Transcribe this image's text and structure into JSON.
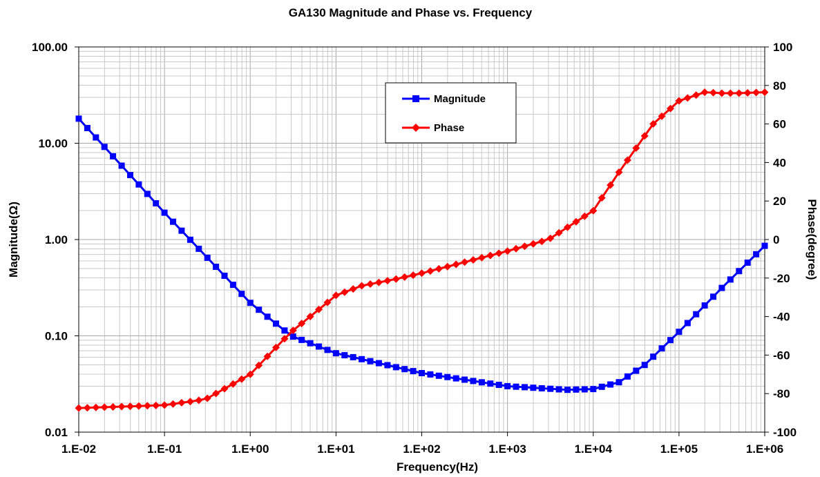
{
  "chart_data": {
    "type": "line",
    "title": "GA130 Magnitude and Phase vs. Frequency",
    "xlabel": "Frequency(Hz)",
    "ylabel_left": "Magnitude(Ω)",
    "ylabel_right": "Phase(degree)",
    "x_scale": "log",
    "y_left_scale": "log",
    "y_right_scale": "linear",
    "xlim": [
      0.01,
      1000000
    ],
    "ylim_left": [
      0.01,
      100
    ],
    "ylim_right": [
      -100,
      100
    ],
    "grid": true,
    "legend_position": "top-center",
    "x_tick_labels": [
      "1.E-02",
      "1.E-01",
      "1.E+00",
      "1.E+01",
      "1.E+02",
      "1.E+03",
      "1.E+04",
      "1.E+05",
      "1.E+06"
    ],
    "y_left_tick_labels": [
      "100.00",
      "10.00",
      "1.00",
      "0.10",
      "0.01"
    ],
    "y_right_tick_labels": [
      "100",
      "80",
      "60",
      "40",
      "20",
      "0",
      "-20",
      "-40",
      "-60",
      "-80",
      "-100"
    ],
    "series": [
      {
        "name": "Magnitude",
        "axis": "left",
        "color": "#0000ff",
        "marker": "square",
        "anchors": [
          [
            0.01,
            18.0
          ],
          [
            0.1,
            1.9
          ],
          [
            1,
            0.22
          ],
          [
            3,
            0.1
          ],
          [
            10,
            0.066
          ],
          [
            100,
            0.041
          ],
          [
            1000,
            0.03
          ],
          [
            5000,
            0.0275
          ],
          [
            10000,
            0.028
          ],
          [
            20000,
            0.033
          ],
          [
            40000,
            0.05
          ],
          [
            100000,
            0.11
          ],
          [
            300000,
            0.3
          ],
          [
            1000000,
            0.86
          ]
        ]
      },
      {
        "name": "Phase",
        "axis": "right",
        "color": "#ff0000",
        "marker": "diamond",
        "anchors": [
          [
            0.01,
            -87.5
          ],
          [
            0.1,
            -86
          ],
          [
            0.3,
            -83
          ],
          [
            1,
            -70
          ],
          [
            2,
            -56
          ],
          [
            3,
            -48
          ],
          [
            5,
            -40
          ],
          [
            10,
            -29
          ],
          [
            20,
            -24
          ],
          [
            50,
            -20.5
          ],
          [
            100,
            -17.5
          ],
          [
            300,
            -12
          ],
          [
            1000,
            -6
          ],
          [
            3000,
            0
          ],
          [
            10000,
            15
          ],
          [
            20000,
            35
          ],
          [
            50000,
            60
          ],
          [
            100000,
            72
          ],
          [
            200000,
            76.5
          ],
          [
            300000,
            76
          ],
          [
            500000,
            76
          ],
          [
            1000000,
            76.5
          ]
        ]
      }
    ]
  }
}
